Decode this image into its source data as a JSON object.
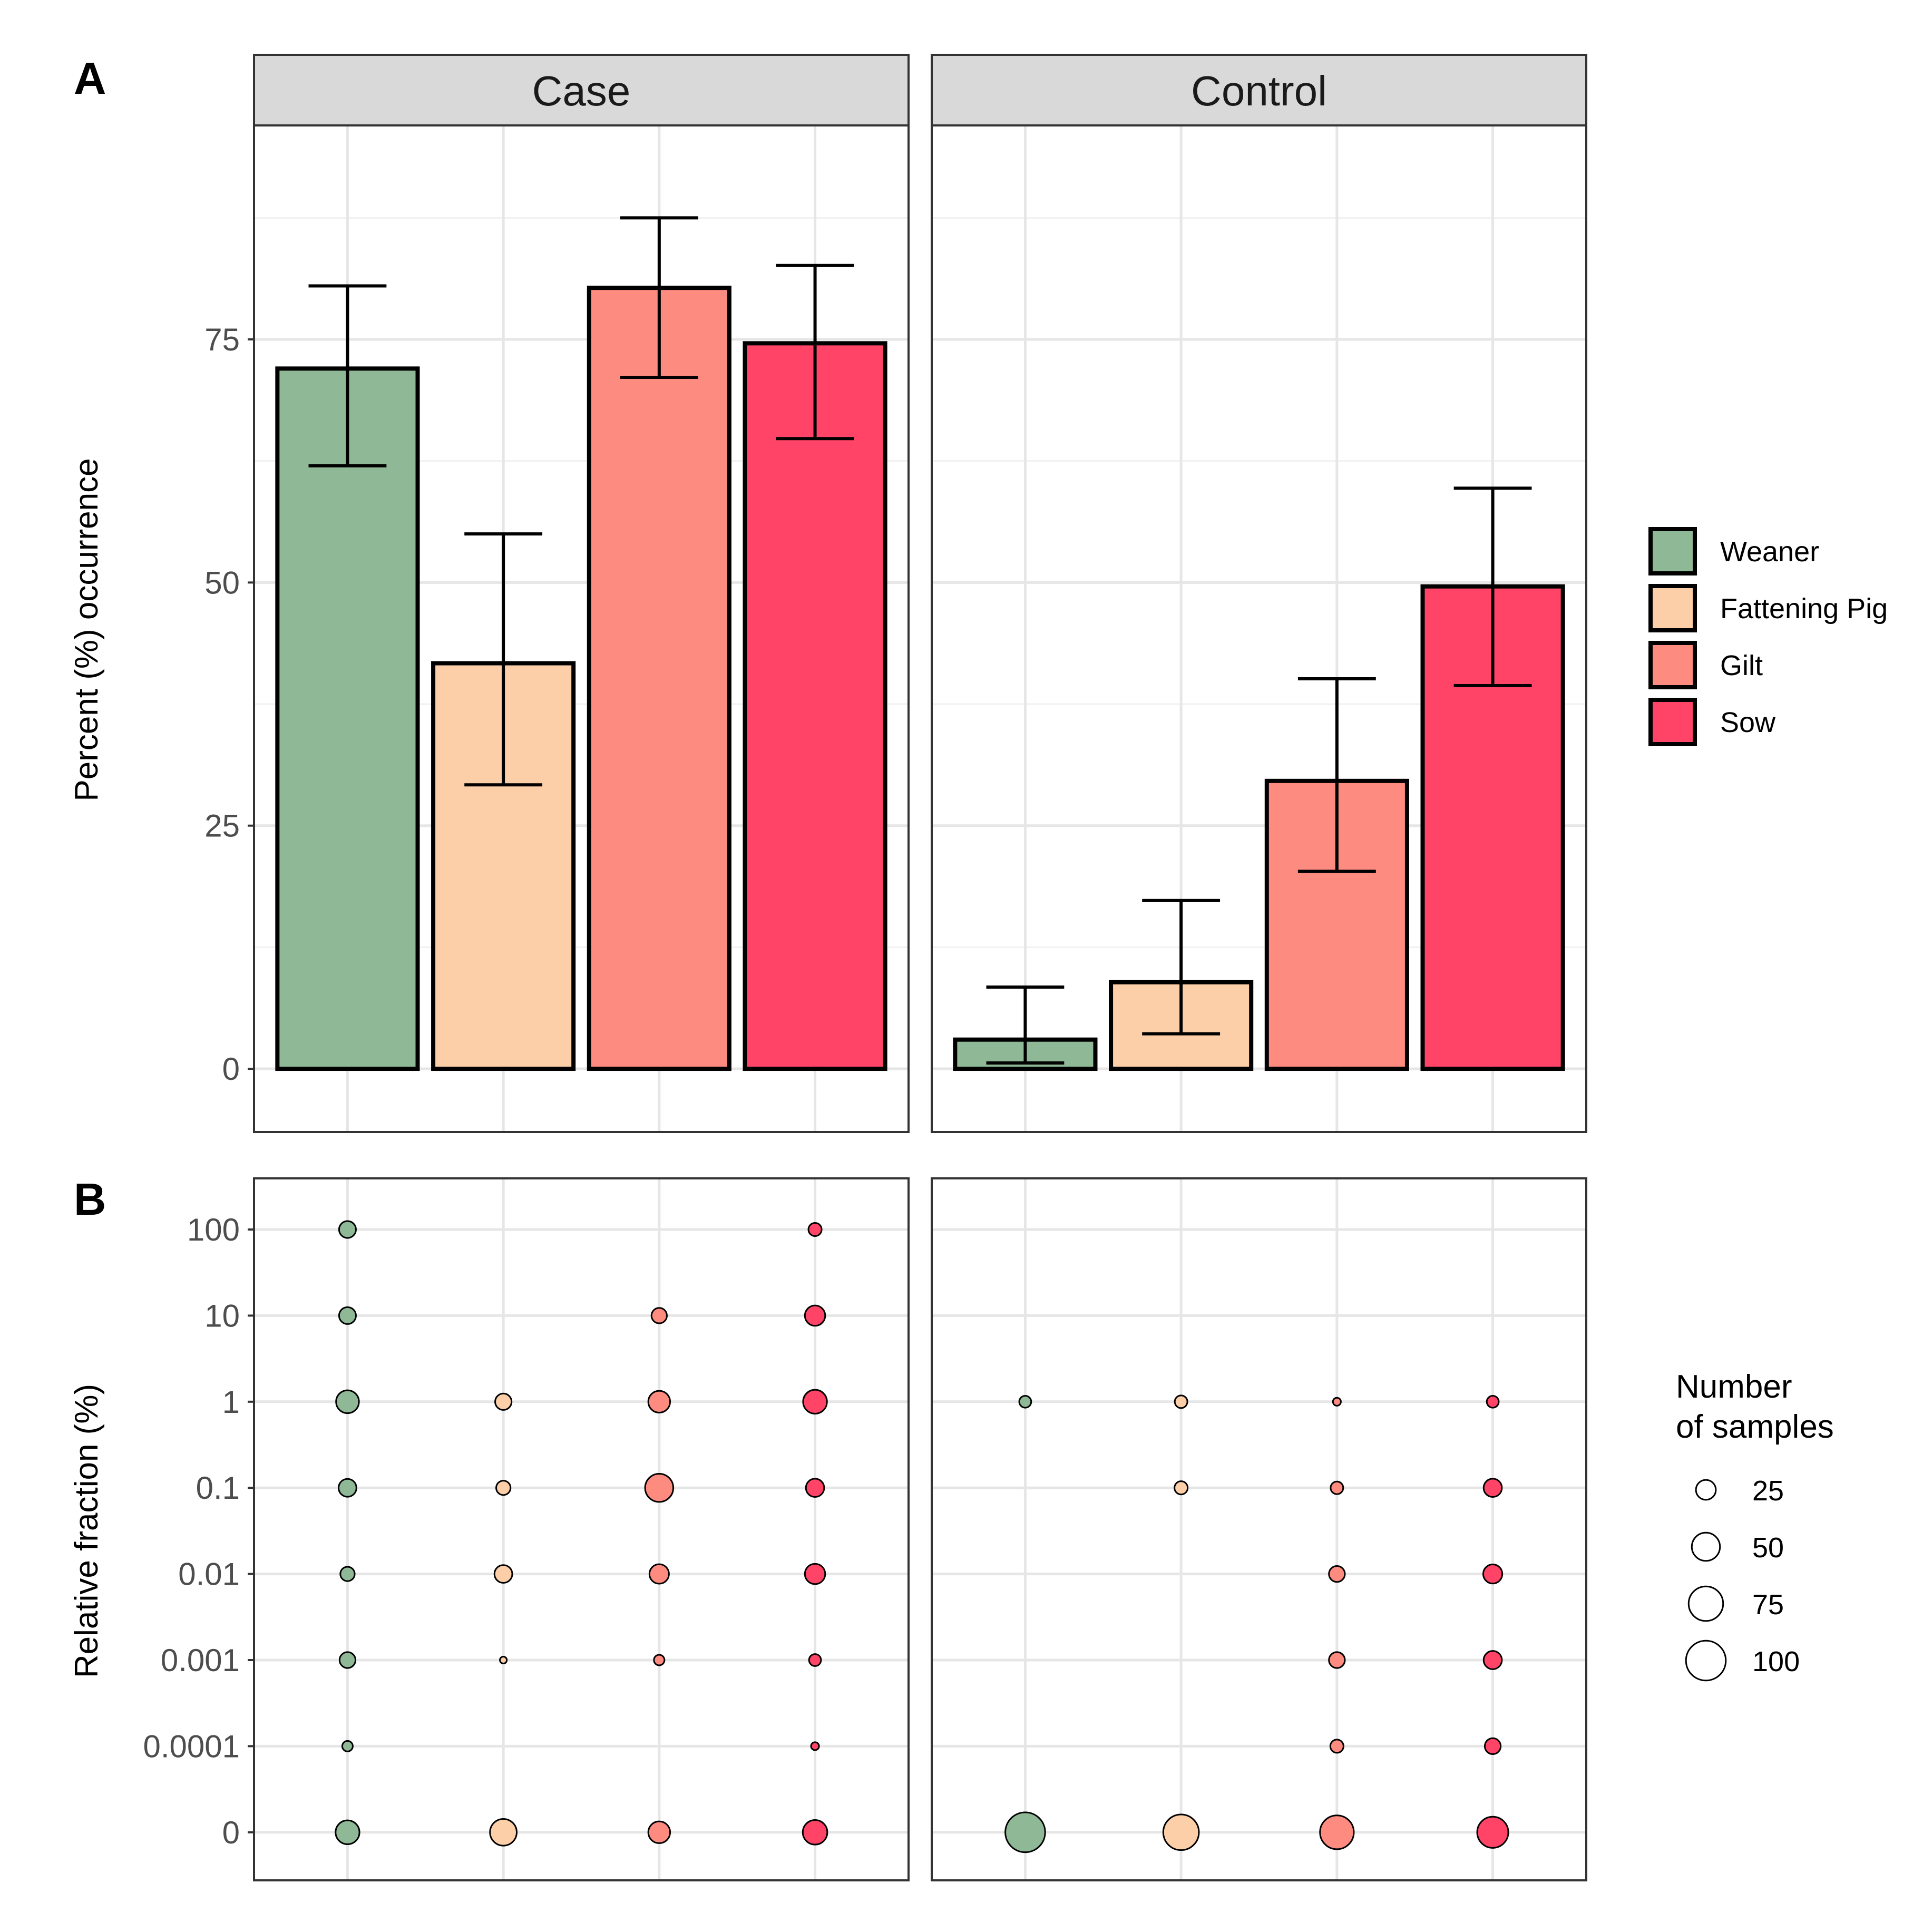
{
  "chart_data": [
    {
      "type": "bar",
      "panel_label": "A",
      "ylabel": "Percent (%) occurrence",
      "ylim": [
        -6.5,
        97
      ],
      "yticks": [
        0,
        25,
        50,
        75
      ],
      "facets": [
        "Case",
        "Control"
      ],
      "categories": [
        "Weaner",
        "Fattening Pig",
        "Gilt",
        "Sow"
      ],
      "colors": [
        "#8fb996",
        "#fdcfa8",
        "#fd8b80",
        "#ff4467"
      ],
      "series": [
        {
          "name": "Case",
          "values": [
            72,
            41.7,
            80.3,
            74.6
          ],
          "err_low": [
            62,
            29.2,
            71.1,
            64.8
          ],
          "err_high": [
            80.5,
            55,
            87.5,
            82.6
          ]
        },
        {
          "name": "Control",
          "values": [
            3,
            8.9,
            29.6,
            49.6
          ],
          "err_low": [
            0.6,
            3.6,
            20.3,
            39.4
          ],
          "err_high": [
            8.4,
            17.3,
            40.1,
            59.7
          ]
        }
      ],
      "legend": {
        "position": "right",
        "entries": [
          "Weaner",
          "Fattening Pig",
          "Gilt",
          "Sow"
        ]
      }
    },
    {
      "type": "scatter",
      "panel_label": "B",
      "ylabel": "Relative fraction (%)",
      "yticks": [
        "100",
        "10",
        "1",
        "0.1",
        "0.01",
        "0.001",
        "0.0001",
        "0"
      ],
      "categories": [
        "Weaner",
        "Fattening Pig",
        "Gilt",
        "Sow"
      ],
      "size_legend": {
        "title_line1": "Number",
        "title_line2": "of samples",
        "sizes": [
          25,
          50,
          75,
          100
        ]
      },
      "facets": [
        {
          "name": "Case",
          "points": [
            {
              "group": 0,
              "y": "100",
              "n": 18
            },
            {
              "group": 0,
              "y": "10",
              "n": 18
            },
            {
              "group": 0,
              "y": "1",
              "n": 33
            },
            {
              "group": 0,
              "y": "0.1",
              "n": 20
            },
            {
              "group": 0,
              "y": "0.01",
              "n": 13
            },
            {
              "group": 0,
              "y": "0.001",
              "n": 16
            },
            {
              "group": 0,
              "y": "0.0001",
              "n": 7
            },
            {
              "group": 0,
              "y": "0",
              "n": 36
            },
            {
              "group": 1,
              "y": "1",
              "n": 17
            },
            {
              "group": 1,
              "y": "0.1",
              "n": 13
            },
            {
              "group": 1,
              "y": "0.01",
              "n": 20
            },
            {
              "group": 1,
              "y": "0.001",
              "n": 3
            },
            {
              "group": 1,
              "y": "0",
              "n": 45
            },
            {
              "group": 2,
              "y": "10",
              "n": 15
            },
            {
              "group": 2,
              "y": "1",
              "n": 30
            },
            {
              "group": 2,
              "y": "0.1",
              "n": 50
            },
            {
              "group": 2,
              "y": "0.01",
              "n": 24
            },
            {
              "group": 2,
              "y": "0.001",
              "n": 7
            },
            {
              "group": 2,
              "y": "0",
              "n": 30
            },
            {
              "group": 3,
              "y": "100",
              "n": 11
            },
            {
              "group": 3,
              "y": "10",
              "n": 26
            },
            {
              "group": 3,
              "y": "1",
              "n": 36
            },
            {
              "group": 3,
              "y": "0.1",
              "n": 21
            },
            {
              "group": 3,
              "y": "0.01",
              "n": 26
            },
            {
              "group": 3,
              "y": "0.001",
              "n": 9
            },
            {
              "group": 3,
              "y": "0.0001",
              "n": 4
            },
            {
              "group": 3,
              "y": "0",
              "n": 38
            }
          ]
        },
        {
          "name": "Control",
          "points": [
            {
              "group": 0,
              "y": "1",
              "n": 9
            },
            {
              "group": 0,
              "y": "0",
              "n": 100
            },
            {
              "group": 1,
              "y": "1",
              "n": 10
            },
            {
              "group": 1,
              "y": "0.1",
              "n": 11
            },
            {
              "group": 1,
              "y": "0",
              "n": 80
            },
            {
              "group": 2,
              "y": "1",
              "n": 4
            },
            {
              "group": 2,
              "y": "0.1",
              "n": 10
            },
            {
              "group": 2,
              "y": "0.01",
              "n": 16
            },
            {
              "group": 2,
              "y": "0.001",
              "n": 16
            },
            {
              "group": 2,
              "y": "0.0001",
              "n": 11
            },
            {
              "group": 2,
              "y": "0",
              "n": 72
            },
            {
              "group": 3,
              "y": "1",
              "n": 9
            },
            {
              "group": 3,
              "y": "0.1",
              "n": 21
            },
            {
              "group": 3,
              "y": "0.01",
              "n": 23
            },
            {
              "group": 3,
              "y": "0.001",
              "n": 21
            },
            {
              "group": 3,
              "y": "0.0001",
              "n": 16
            },
            {
              "group": 3,
              "y": "0",
              "n": 61
            }
          ]
        }
      ]
    }
  ]
}
